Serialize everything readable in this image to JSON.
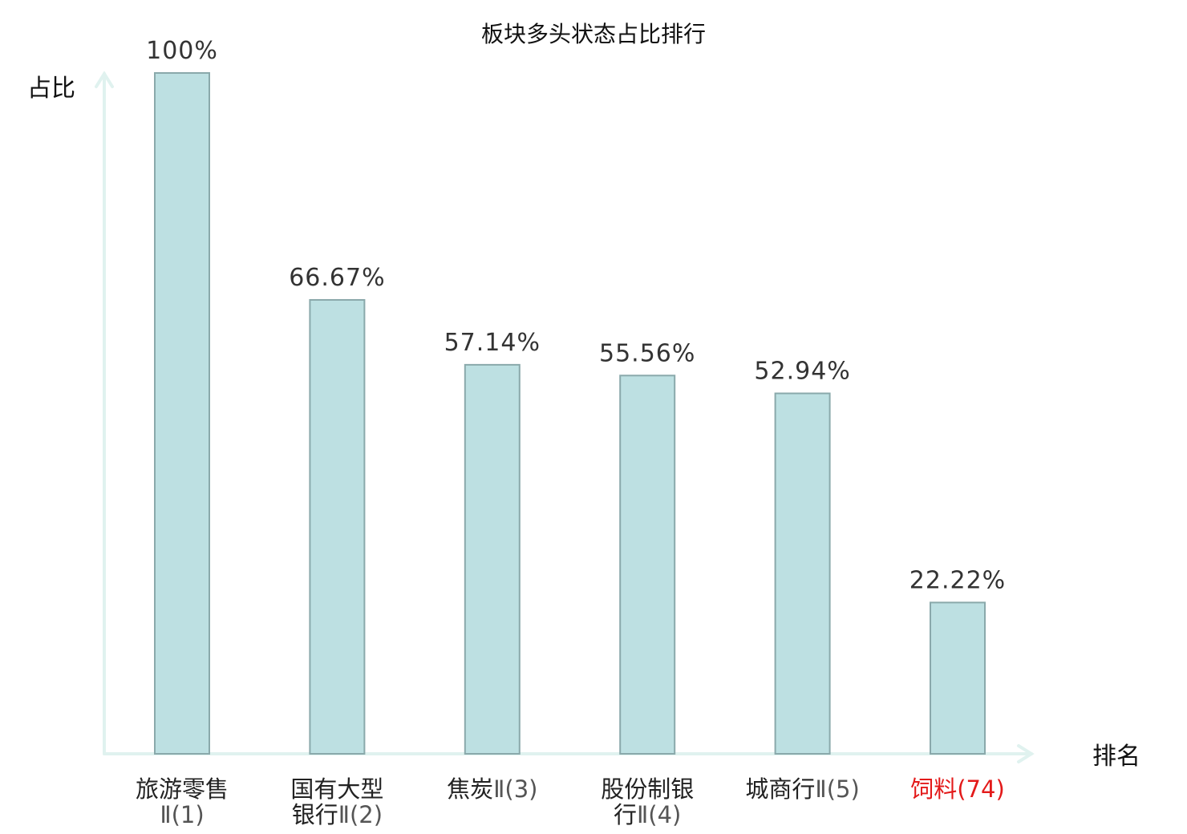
{
  "chart_data": {
    "type": "bar",
    "title": "板块多头状态占比排行",
    "ylabel": "占比",
    "xlabel": "排名",
    "ylim": [
      0,
      100
    ],
    "grid": false,
    "colors": {
      "bar_fill": "#bde0e2",
      "bar_stroke": "#8aa9ab",
      "axis": "#e0f2ef",
      "highlight_text": "#e31a1a"
    },
    "categories": [
      {
        "lines": [
          {
            "name": "旅游零售",
            "code": ""
          },
          {
            "name": "",
            "code": "Ⅱ(1)"
          }
        ],
        "highlight": false
      },
      {
        "lines": [
          {
            "name": "国有大型",
            "code": ""
          },
          {
            "name": "银行",
            "code": "Ⅱ(2)"
          }
        ],
        "highlight": false
      },
      {
        "lines": [
          {
            "name": "焦炭",
            "code": "Ⅱ(3)"
          }
        ],
        "highlight": false
      },
      {
        "lines": [
          {
            "name": "股份制银",
            "code": ""
          },
          {
            "name": "行",
            "code": "Ⅱ(4)"
          }
        ],
        "highlight": false
      },
      {
        "lines": [
          {
            "name": "城商行",
            "code": "Ⅱ(5)"
          }
        ],
        "highlight": false
      },
      {
        "lines": [
          {
            "name": "饲料",
            "code": "(74)"
          }
        ],
        "highlight": true
      }
    ],
    "values": [
      100,
      66.67,
      57.14,
      55.56,
      52.94,
      22.22
    ],
    "value_labels": [
      "100%",
      "66.67%",
      "57.14%",
      "55.56%",
      "52.94%",
      "22.22%"
    ]
  }
}
